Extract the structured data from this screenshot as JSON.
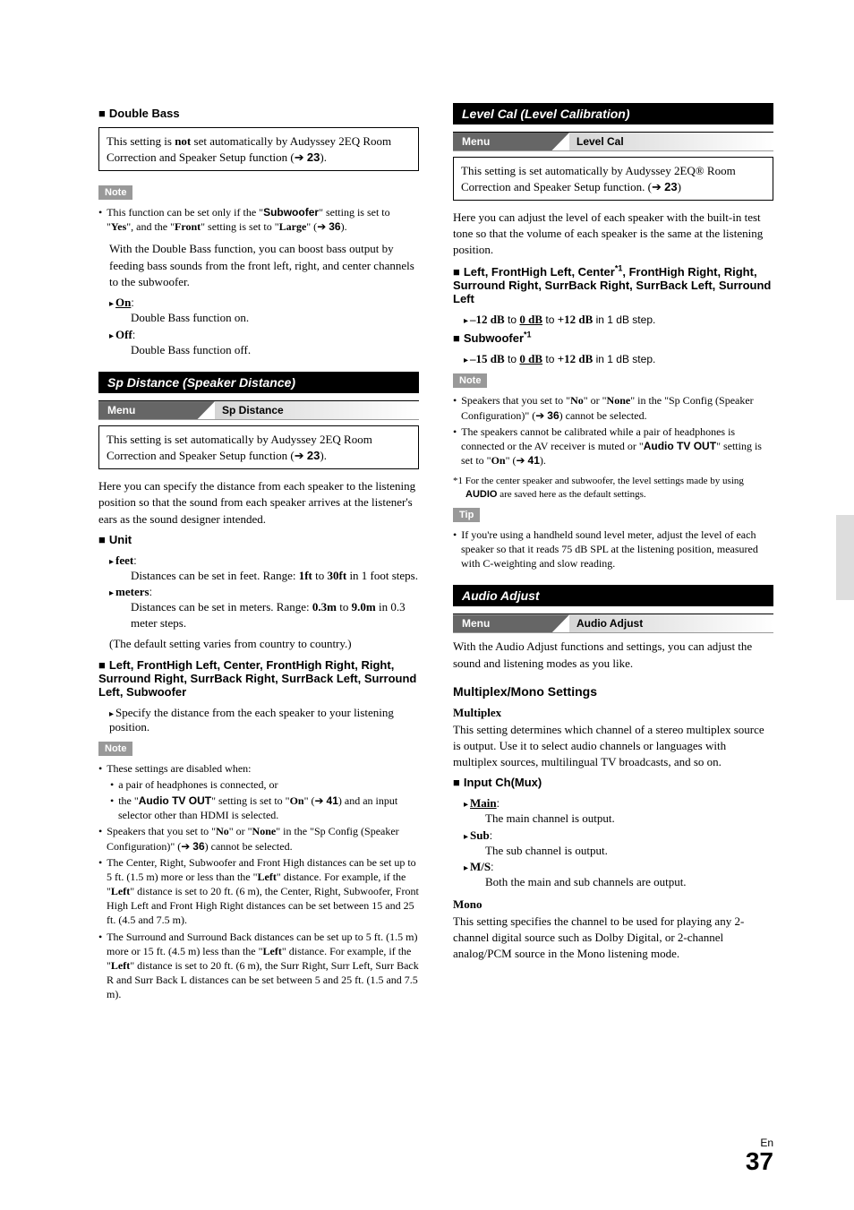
{
  "left": {
    "doubleBass": {
      "heading": "Double Bass",
      "box": "This setting is <b>not</b> set automatically by Audyssey 2EQ Room Correction and Speaker Setup function (<span class='arrow'>➔</span> <b class='sans-bold'>23</b>).",
      "noteLabel": "Note",
      "note1": "This function can be set only if the \"<b class='sans-bold'>Subwoofer</b>\" setting is set to \"<b>Yes</b>\", and the \"<b>Front</b>\" setting is set to \"<b>Large</b>\" (<span class='arrow'>➔</span> <b class='sans-bold'>36</b>).",
      "desc": "With the Double Bass function, you can boost bass output by feeding bass sounds from the front left, right, and center channels to the subwoofer.",
      "onLabel": "<b><span class='underline'>On</span></b>:",
      "onDesc": "Double Bass function on.",
      "offLabel": "<b>Off</b>:",
      "offDesc": "Double Bass function off."
    },
    "spDistance": {
      "bar": "Sp Distance (Speaker Distance)",
      "menuLabel": "Menu",
      "menuVal": "Sp Distance",
      "box": "This setting is set automatically by Audyssey 2EQ Room Correction and Speaker Setup function (<span class='arrow'>➔</span> <b class='sans-bold'>23</b>).",
      "intro": "Here you can specify the distance from each speaker to the listening position so that the sound from each speaker arrives at the listener's ears as the sound designer intended.",
      "unitHeading": "Unit",
      "feetLabel": "<b>feet</b>:",
      "feetDesc": "Distances can be set in feet. Range: <b>1ft</b> to <b>30ft</b> in 1 foot steps.",
      "metersLabel": "<b>meters</b>:",
      "metersDesc": "Distances can be set in meters. Range: <b>0.3m</b> to <b>9.0m</b> in 0.3 meter steps.",
      "defaultNote": "(The default setting varies from country to country.)",
      "speakersHeading": "Left, FrontHigh Left, Center, FrontHigh Right, Right, Surround Right, SurrBack Right, SurrBack Left, Surround Left, Subwoofer",
      "speakersDesc": "Specify the distance from the each speaker to your listening position.",
      "noteLabel": "Note",
      "notes": [
        "These settings are disabled when:",
        "a pair of headphones is connected, or",
        "the \"<b class='sans-bold'>Audio TV OUT</b>\" setting is set to \"<b>On</b>\" (<span class='arrow'>➔</span> <b class='sans-bold'>41</b>) and an input selector other than HDMI is selected.",
        "Speakers that you set to \"<b>No</b>\" or \"<b>None</b>\" in the \"Sp Config (Speaker Configuration)\" (<span class='arrow'>➔</span> <b class='sans-bold'>36</b>) cannot be selected.",
        "The Center, Right, Subwoofer and Front High distances can be set up to 5 ft. (1.5 m) more or less than the \"<b>Left</b>\" distance. For example, if the \"<b>Left</b>\" distance is set to 20 ft. (6 m), the Center, Right, Subwoofer, Front High Left and Front High Right distances can be set between 15 and 25 ft. (4.5 and 7.5 m).",
        "The Surround and Surround Back distances can be set up to 5 ft. (1.5 m) more or 15 ft. (4.5 m) less than the \"<b>Left</b>\" distance. For example, if the \"<b>Left</b>\" distance is set to 20 ft. (6 m), the Surr Right, Surr Left, Surr Back R and Surr Back L distances can be set between 5 and 25 ft. (1.5 and 7.5 m)."
      ]
    }
  },
  "right": {
    "levelCal": {
      "bar": "Level Cal (Level Calibration)",
      "menuLabel": "Menu",
      "menuVal": "Level Cal",
      "box": "This setting is set automatically by Audyssey 2EQ® Room Correction and Speaker Setup function. (<span class='arrow'>➔</span> <b class='sans-bold'>23</b>)",
      "intro": "Here you can adjust the level of each speaker with the built-in test tone so that the volume of each speaker is the same at the listening position.",
      "speakersHeading": "Left, FrontHigh Left, Center<span class='sup'>*1</span>, FrontHigh Right, Right, Surround Right, SurrBack Right, SurrBack Left, Surround Left",
      "range1": "<b>–12 dB</b> to <b><span class='underline'>0 dB</span></b> to <b>+12 dB</b> in 1 dB step.",
      "subHeading": "Subwoofer<span class='sup'>*1</span>",
      "range2": "<b>–15 dB</b> to <b><span class='underline'>0 dB</span></b> to <b>+12 dB</b> in 1 dB step.",
      "noteLabel": "Note",
      "notes": [
        "Speakers that you set to \"<b>No</b>\" or \"<b>None</b>\" in the \"Sp Config (Speaker Configuration)\" (<span class='arrow'>➔</span> <b class='sans-bold'>36</b>) cannot be selected.",
        "The speakers cannot be calibrated while a pair of headphones is connected or the AV receiver is muted or \"<b class='sans-bold'>Audio TV OUT</b>\" setting is set to \"<b>On</b>\" (<span class='arrow'>➔</span> <b class='sans-bold'>41</b>)."
      ],
      "footnote": "*1  For the center speaker and subwoofer, the level settings made by using <b class='sans-bold'>AUDIO</b> are saved here as the default settings.",
      "tipLabel": "Tip",
      "tip": "If you're using a handheld sound level meter, adjust the level of each speaker so that it reads 75 dB SPL at the listening position, measured with C-weighting and slow reading."
    },
    "audioAdjust": {
      "bar": "Audio Adjust",
      "menuLabel": "Menu",
      "menuVal": "Audio Adjust",
      "intro": "With the Audio Adjust functions and settings, you can adjust the sound and listening modes as you like.",
      "h3": "Multiplex/Mono Settings",
      "multiplexH": "Multiplex",
      "multiplexDesc": "This setting determines which channel of a stereo multiplex source is output. Use it to select audio channels or languages with multiplex sources, multilingual TV broadcasts, and so on.",
      "inputChHeading": "Input Ch(Mux)",
      "mainLabel": "<b><span class='underline'>Main</span></b>:",
      "mainDesc": "The main channel is output.",
      "subLabel": "<b>Sub</b>:",
      "subDesc": "The sub channel is output.",
      "msLabel": "<b>M/S</b>:",
      "msDesc": "Both the main and sub channels are output.",
      "monoH": "Mono",
      "monoDesc": "This setting specifies the channel to be used for playing any 2-channel digital source such as Dolby Digital, or 2-channel analog/PCM source in the Mono listening mode."
    }
  },
  "page": {
    "en": "En",
    "num": "37"
  }
}
